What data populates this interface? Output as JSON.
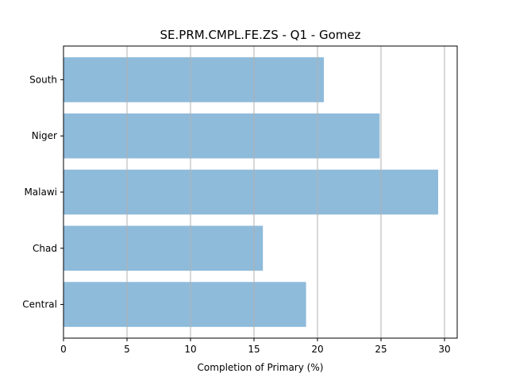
{
  "chart_data": {
    "type": "bar",
    "orientation": "horizontal",
    "title": "SE.PRM.CMPL.FE.ZS - Q1 - Gomez",
    "xlabel": "Completion of Primary (%)",
    "ylabel": "",
    "categories": [
      "Central",
      "Chad",
      "Malawi",
      "Niger",
      "South"
    ],
    "values": [
      19.1,
      15.7,
      29.5,
      24.9,
      20.5
    ],
    "xlim": [
      0,
      31
    ],
    "xticks": [
      0,
      5,
      10,
      15,
      20,
      25,
      30
    ],
    "grid": "x-major",
    "bar_color": "#8fbbdb"
  }
}
